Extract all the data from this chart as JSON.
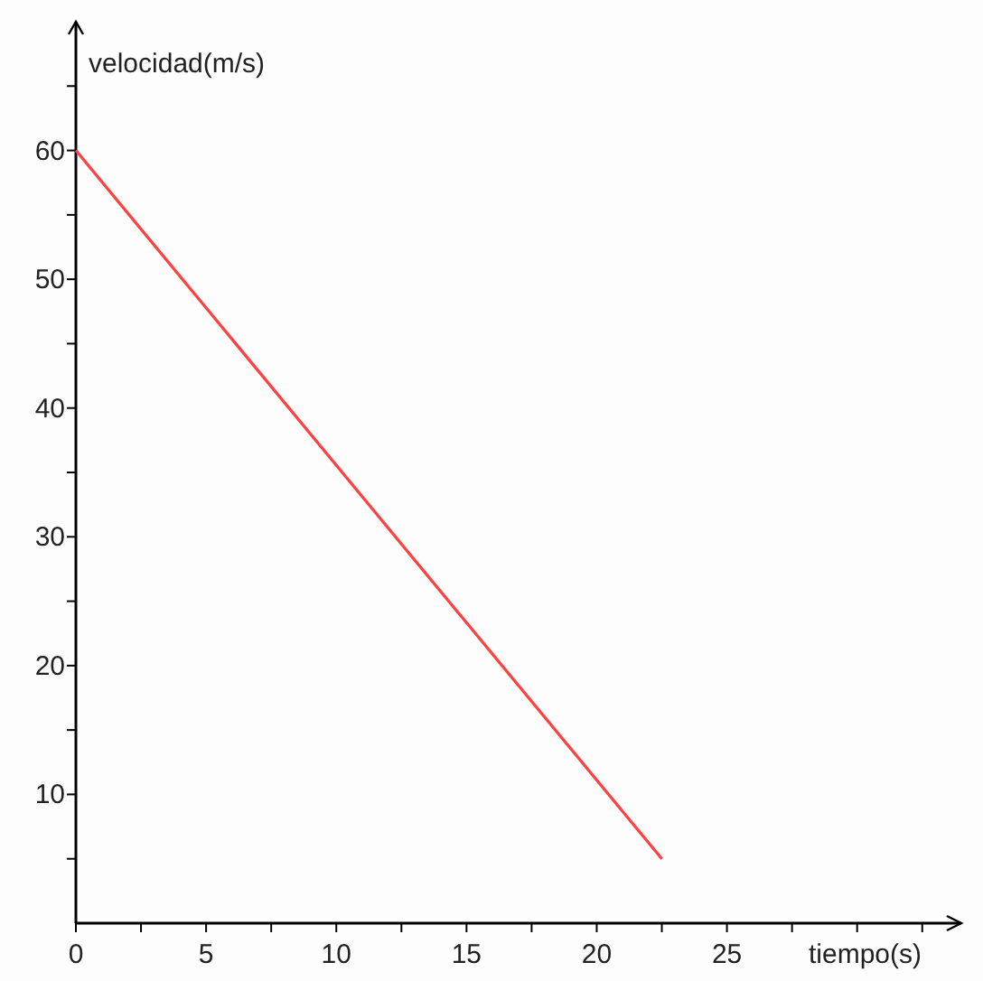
{
  "chart_data": {
    "type": "line",
    "xlabel": "tiempo(s)",
    "ylabel": "velocidad(m/s)",
    "x": [
      0,
      22.5
    ],
    "series": [
      {
        "color": "#ff4040",
        "values": [
          60,
          5
        ]
      }
    ],
    "xlim": [
      0,
      34
    ],
    "ylim": [
      0,
      70
    ],
    "xticks": [
      0,
      {
        "value": 2.5,
        "label": null
      },
      5,
      {
        "value": 7.5,
        "label": null
      },
      10,
      {
        "value": 12.5,
        "label": null
      },
      15,
      {
        "value": 17.5,
        "label": null
      },
      20,
      {
        "value": 22.5,
        "label": null
      },
      25,
      {
        "value": 27.5,
        "label": null
      },
      {
        "value": 30,
        "label": null
      },
      {
        "value": 32.5,
        "label": null
      }
    ],
    "yticks": [
      {
        "value": 5,
        "label": null
      },
      10,
      {
        "value": 15,
        "label": null
      },
      20,
      {
        "value": 25,
        "label": null
      },
      30,
      {
        "value": 35,
        "label": null
      },
      40,
      {
        "value": 45,
        "label": null
      },
      50,
      {
        "value": 55,
        "label": null
      },
      60,
      {
        "value": 65,
        "label": null
      }
    ],
    "marker": "none",
    "line_style": "solid"
  }
}
